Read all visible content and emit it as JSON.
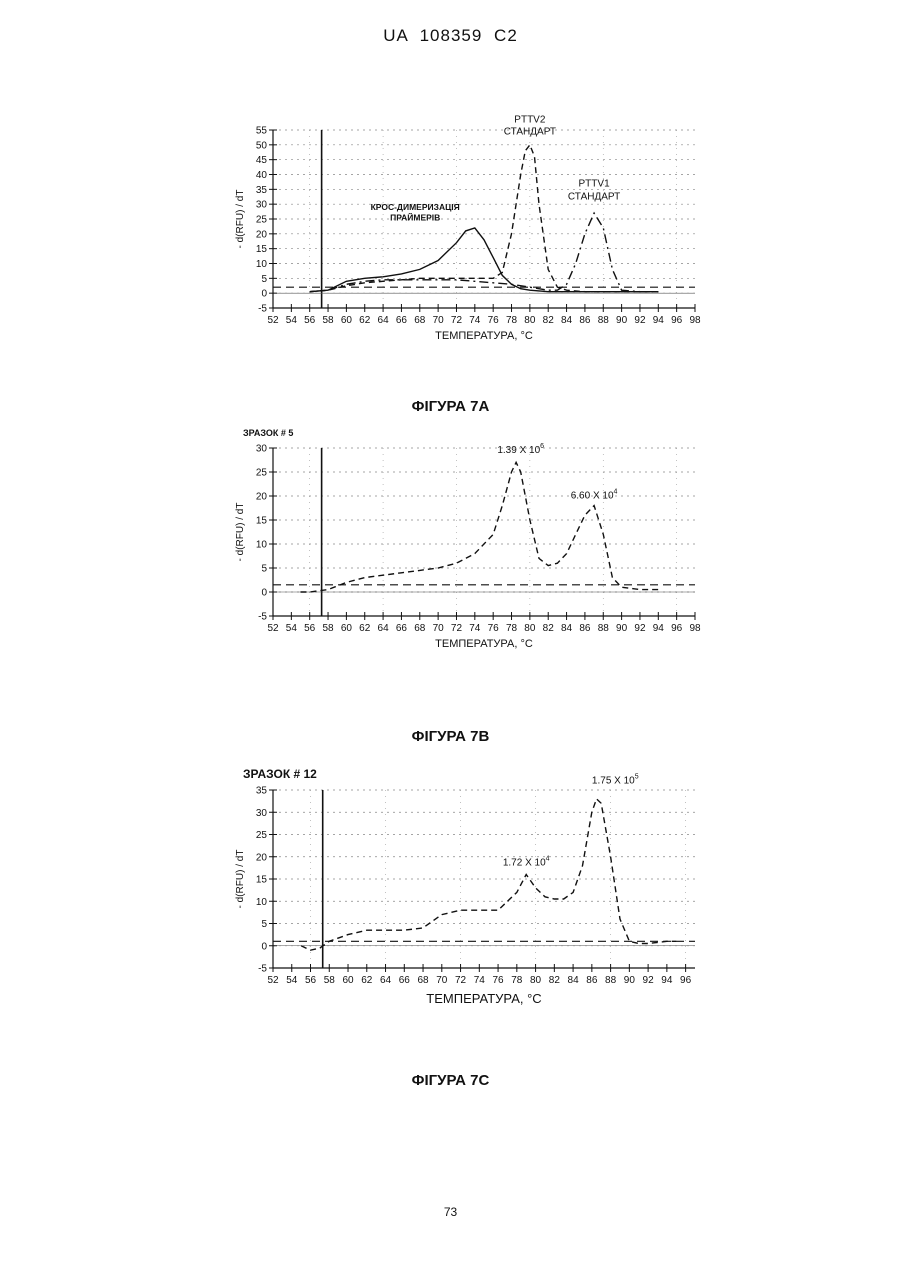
{
  "header": {
    "doc_id": "UA 108359 C2"
  },
  "page_number": "73",
  "figures": [
    {
      "caption": "ФІГУРА 7А"
    },
    {
      "caption": "ФІГУРА 7В"
    },
    {
      "caption": "ФІГУРА 7С"
    }
  ],
  "chart_data": [
    {
      "type": "line",
      "title": "",
      "xlabel": "ТЕМПЕРАТУРА, °С",
      "ylabel": "- d(RFU) / dT",
      "xlim": [
        52,
        98
      ],
      "ylim": [
        -5,
        55
      ],
      "xticks": [
        "52",
        "54",
        "56",
        "58",
        "60",
        "62",
        "64",
        "66",
        "68",
        "70",
        "72",
        "74",
        "76",
        "78",
        "80",
        "82",
        "84",
        "86",
        "88",
        "90",
        "92",
        "94",
        "96",
        "98"
      ],
      "yticks": [
        "-5",
        "0",
        "5",
        "10",
        "15",
        "20",
        "25",
        "30",
        "35",
        "40",
        "45",
        "50",
        "55"
      ],
      "threshold": 2,
      "annotations": [
        {
          "text": "PTTV2",
          "x": 80,
          "y": 57.5
        },
        {
          "text": "СТАНДАРТ",
          "x": 80,
          "y": 53.5
        },
        {
          "text": "PTTV1",
          "x": 87,
          "y": 36
        },
        {
          "text": "СТАНДАРТ",
          "x": 87,
          "y": 31.5
        },
        {
          "text": "КРОС-ДИМЕРИЗАЦІЯ",
          "x": 67.5,
          "y": 28
        },
        {
          "text": "ПРАЙМЕРІВ",
          "x": 67.5,
          "y": 24.5
        }
      ],
      "series": [
        {
          "style": "solid",
          "x": [
            56,
            58,
            60,
            62,
            64,
            66,
            68,
            70,
            72,
            73,
            74,
            75,
            76,
            77,
            78,
            79,
            80,
            82,
            84,
            86,
            88,
            90,
            92,
            94
          ],
          "y": [
            0.5,
            1,
            4,
            5,
            5.5,
            6.5,
            8,
            11,
            17,
            21,
            22,
            18,
            12,
            6,
            3,
            1.5,
            1,
            0.5,
            0.5,
            0.5,
            0.5,
            0.5,
            0.5,
            0.5
          ]
        },
        {
          "style": "dashed",
          "x": [
            56,
            58,
            60,
            62,
            64,
            66,
            68,
            70,
            72,
            74,
            76,
            77,
            78,
            79,
            79.5,
            80,
            80.5,
            81,
            82,
            83,
            84,
            86,
            88,
            90,
            92,
            94
          ],
          "y": [
            0.5,
            1,
            2.5,
            3.5,
            4,
            4.5,
            5,
            5,
            5,
            5,
            5,
            7,
            20,
            40,
            48,
            50,
            46,
            30,
            8,
            2,
            1,
            0.5,
            0.5,
            0.5,
            0.5,
            0.5
          ]
        },
        {
          "style": "dashdot",
          "x": [
            56,
            58,
            60,
            62,
            64,
            66,
            68,
            70,
            72,
            74,
            76,
            78,
            80,
            82,
            83,
            84,
            85,
            86,
            87,
            88,
            89,
            90,
            92,
            94
          ],
          "y": [
            0.5,
            1,
            3,
            4,
            4.5,
            4.5,
            4.5,
            4.5,
            4.5,
            4,
            3.5,
            3,
            2,
            1,
            1,
            3,
            10,
            20,
            27,
            22,
            8,
            1,
            0.5,
            0.5
          ]
        }
      ]
    },
    {
      "type": "line",
      "title": "ЗРАЗОК # 5",
      "xlabel": "ТЕМПЕРАТУРА, °С",
      "ylabel": "- d(RFU) / dT",
      "xlim": [
        52,
        98
      ],
      "ylim": [
        -5,
        30
      ],
      "xticks": [
        "52",
        "54",
        "56",
        "58",
        "60",
        "62",
        "64",
        "66",
        "68",
        "70",
        "72",
        "74",
        "76",
        "78",
        "80",
        "82",
        "84",
        "86",
        "88",
        "90",
        "92",
        "94",
        "96",
        "98"
      ],
      "yticks": [
        "-5",
        "0",
        "5",
        "10",
        "15",
        "20",
        "25",
        "30"
      ],
      "threshold": 1.5,
      "annotations": [
        {
          "text": "1.39 X 10",
          "sup": "6",
          "x": 79,
          "y": 29
        },
        {
          "text": "6.60 X 10",
          "sup": "4",
          "x": 87,
          "y": 19.5
        }
      ],
      "series": [
        {
          "style": "dashed",
          "x": [
            55,
            56,
            58,
            60,
            62,
            64,
            66,
            68,
            70,
            72,
            74,
            76,
            77,
            78,
            78.5,
            79,
            80,
            81,
            82,
            83,
            84,
            85,
            86,
            87,
            88,
            89,
            90,
            92,
            94
          ],
          "y": [
            0,
            0,
            0.5,
            2,
            3,
            3.5,
            4,
            4.5,
            5,
            6,
            8,
            12,
            18,
            25,
            27,
            25,
            15,
            7,
            5.5,
            6,
            8,
            12,
            16,
            18,
            12,
            3,
            1,
            0.5,
            0.5
          ]
        }
      ]
    },
    {
      "type": "line",
      "title": "ЗРАЗОК # 12",
      "xlabel": "ТЕМПЕРАТУРА, °С",
      "ylabel": "- d(RFU) / dT",
      "xlim": [
        52,
        97
      ],
      "ylim": [
        -5,
        35
      ],
      "xticks": [
        "52",
        "54",
        "56",
        "58",
        "60",
        "62",
        "64",
        "66",
        "68",
        "70",
        "72",
        "74",
        "76",
        "78",
        "80",
        "82",
        "84",
        "86",
        "88",
        "90",
        "92",
        "94",
        "96"
      ],
      "yticks": [
        "-5",
        "0",
        "5",
        "10",
        "15",
        "20",
        "25",
        "30",
        "35"
      ],
      "threshold": 1,
      "annotations": [
        {
          "text": "1.75 X 10",
          "sup": "5",
          "x": 88.5,
          "y": 36.5
        },
        {
          "text": "1.72 X 10",
          "sup": "4",
          "x": 79,
          "y": 18
        }
      ],
      "series": [
        {
          "style": "dashed",
          "x": [
            55,
            56,
            57,
            58,
            60,
            62,
            64,
            66,
            68,
            70,
            72,
            74,
            76,
            78,
            79,
            80,
            81,
            82,
            83,
            84,
            85,
            86,
            86.5,
            87,
            88,
            89,
            90,
            91,
            92,
            94,
            95
          ],
          "y": [
            0,
            -1,
            -0.5,
            1,
            2.5,
            3.5,
            3.5,
            3.5,
            4,
            7,
            8,
            8,
            8,
            12,
            16,
            13,
            11,
            10.5,
            10.5,
            12,
            18,
            30,
            33,
            32,
            20,
            6,
            1,
            0.5,
            0.5,
            1,
            1
          ]
        }
      ]
    }
  ]
}
